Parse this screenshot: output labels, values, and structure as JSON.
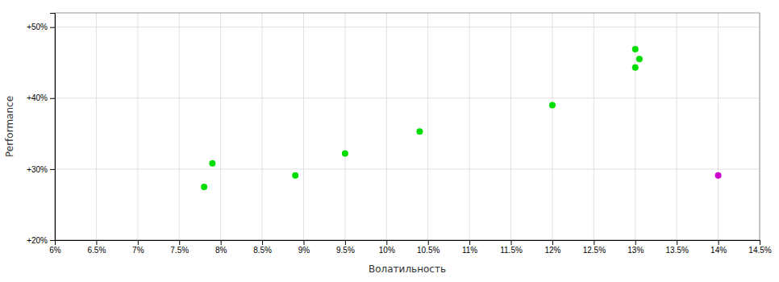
{
  "chart_data": {
    "type": "scatter",
    "xlabel": "Волатильность",
    "ylabel": "Performance",
    "xlim": [
      0.06,
      0.145
    ],
    "ylim": [
      0.2,
      0.52
    ],
    "xticks": [
      {
        "value": 0.06,
        "label": "6%"
      },
      {
        "value": 0.065,
        "label": "6.5%"
      },
      {
        "value": 0.07,
        "label": "7%"
      },
      {
        "value": 0.075,
        "label": "7.5%"
      },
      {
        "value": 0.08,
        "label": "8%"
      },
      {
        "value": 0.085,
        "label": "8.5%"
      },
      {
        "value": 0.09,
        "label": "9%"
      },
      {
        "value": 0.095,
        "label": "9.5%"
      },
      {
        "value": 0.1,
        "label": "10%"
      },
      {
        "value": 0.105,
        "label": "10.5%"
      },
      {
        "value": 0.11,
        "label": "11%"
      },
      {
        "value": 0.115,
        "label": "11.5%"
      },
      {
        "value": 0.12,
        "label": "12%"
      },
      {
        "value": 0.125,
        "label": "12.5%"
      },
      {
        "value": 0.13,
        "label": "13%"
      },
      {
        "value": 0.135,
        "label": "13.5%"
      },
      {
        "value": 0.14,
        "label": "14%"
      },
      {
        "value": 0.145,
        "label": "14.5%"
      }
    ],
    "yticks": [
      {
        "value": 0.2,
        "label": "+20%"
      },
      {
        "value": 0.3,
        "label": "+30%"
      },
      {
        "value": 0.4,
        "label": "+40%"
      },
      {
        "value": 0.5,
        "label": "+50%"
      }
    ],
    "grid": true,
    "series": [
      {
        "color": "#00dd00",
        "x": [
          0.079,
          0.078,
          0.089,
          0.095,
          0.104,
          0.12,
          0.13,
          0.1305,
          0.13
        ],
        "values": [
          0.308,
          0.275,
          0.291,
          0.322,
          0.353,
          0.39,
          0.469,
          0.455,
          0.443
        ]
      },
      {
        "color": "#cc00cc",
        "x": [
          0.14
        ],
        "values": [
          0.291
        ]
      }
    ]
  }
}
